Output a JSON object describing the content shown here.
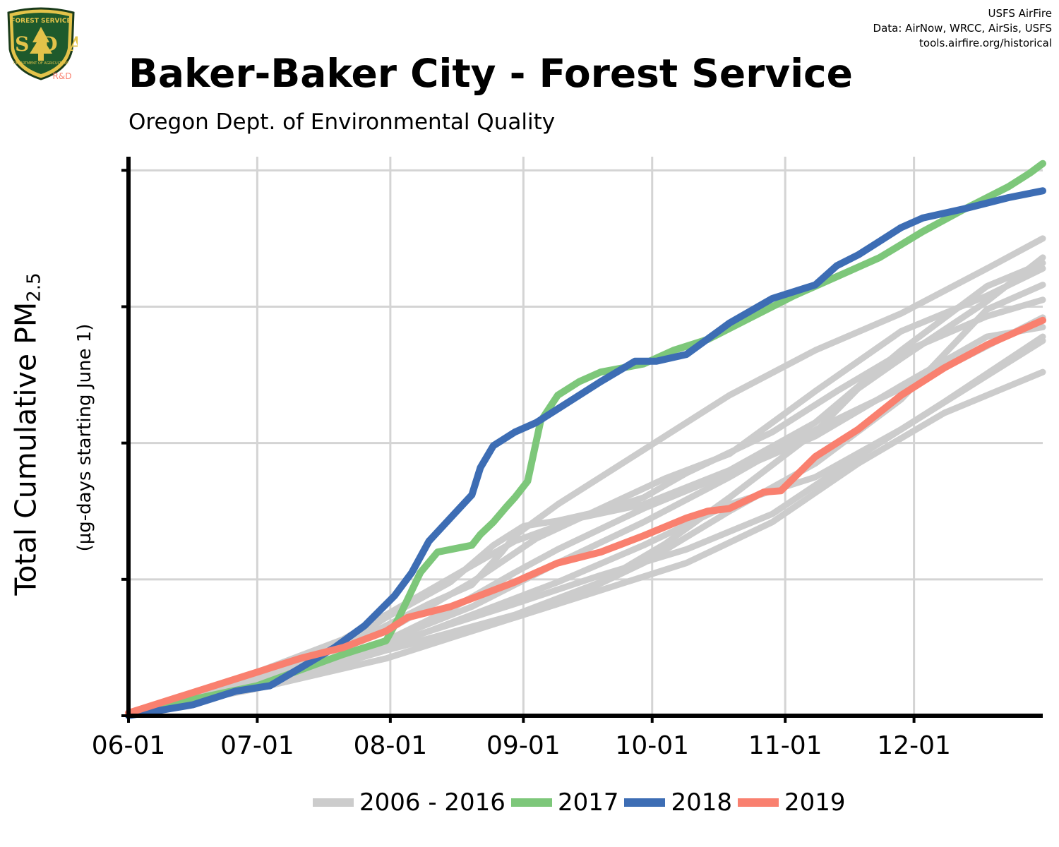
{
  "logo": {
    "top_text": "FOREST SERVICE",
    "letters": "USDA",
    "bottom_text": "DEPARTMENT OF AGRICULTURE",
    "badge": "R&D"
  },
  "credits": [
    "USFS AirFire",
    "Data: AirNow, WRCC, AirSis, USFS",
    "tools.airfire.org/historical"
  ],
  "colors": {
    "historical": "#cccccc",
    "y2017": "#7dc77a",
    "y2018": "#3d6db4",
    "y2019": "#f9806f",
    "grid": "#d4d4d4",
    "axis": "#000000"
  },
  "chart_data": {
    "type": "line",
    "title": "Baker-Baker City - Forest Service",
    "subtitle": "Oregon Dept. of Environmental Quality",
    "ylabel": "Total Cumulative PM",
    "ylabel_sub": "2.5",
    "ylabel_units": "(µg-days starting June 1)",
    "x_ticks": [
      "06-01",
      "07-01",
      "08-01",
      "09-01",
      "10-01",
      "11-01",
      "12-01"
    ],
    "x_tick_days": [
      0,
      30,
      61,
      92,
      122,
      153,
      183
    ],
    "xlim": [
      0,
      213
    ],
    "ylim": [
      0,
      4.1
    ],
    "y_grid": [
      0,
      1,
      2,
      3,
      4
    ],
    "grid": true,
    "legend_position": "bottom",
    "series": [
      {
        "name": "2006 - 2016",
        "color_key": "historical",
        "group": [
          {
            "x": [
              0,
              20,
              50,
              60,
              75,
              85,
              92,
              100,
              110,
              120,
              130,
              150,
              165,
              180,
              200,
              213
            ],
            "y": [
              0.02,
              0.2,
              0.52,
              0.72,
              0.98,
              1.25,
              1.39,
              1.43,
              1.5,
              1.6,
              1.78,
              2.08,
              2.38,
              2.66,
              2.93,
              3.05
            ]
          },
          {
            "x": [
              0,
              30,
              55,
              70,
              80,
              87,
              90,
              100,
              120,
              140,
              160,
              180,
              200,
              213
            ],
            "y": [
              0.02,
              0.28,
              0.58,
              0.82,
              0.96,
              1.2,
              1.32,
              1.55,
              1.95,
              2.35,
              2.68,
              2.95,
              3.28,
              3.5
            ]
          },
          {
            "x": [
              0,
              30,
              60,
              90,
              110,
              125,
              140,
              160,
              170,
              180,
              200,
              213
            ],
            "y": [
              0.02,
              0.22,
              0.48,
              0.74,
              0.98,
              1.26,
              1.6,
              2.08,
              2.4,
              2.62,
              3.04,
              3.36
            ]
          },
          {
            "x": [
              0,
              25,
              50,
              70,
              90,
              105,
              120,
              140,
              160,
              180,
              200,
              213
            ],
            "y": [
              0.02,
              0.26,
              0.56,
              0.92,
              1.28,
              1.45,
              1.55,
              1.8,
              2.15,
              2.68,
              3.15,
              3.32
            ]
          },
          {
            "x": [
              0,
              30,
              60,
              80,
              100,
              120,
              140,
              160,
              180,
              200,
              213
            ],
            "y": [
              0.02,
              0.2,
              0.42,
              0.62,
              0.82,
              1.12,
              1.5,
              1.85,
              2.32,
              2.98,
              3.16
            ]
          },
          {
            "x": [
              0,
              30,
              60,
              80,
              100,
              120,
              140,
              155,
              170,
              190,
              213
            ],
            "y": [
              0.02,
              0.25,
              0.55,
              0.8,
              1.12,
              1.42,
              1.75,
              2.02,
              2.25,
              2.55,
              2.92
            ]
          },
          {
            "x": [
              0,
              30,
              60,
              90,
              110,
              130,
              150,
              170,
              190,
              213
            ],
            "y": [
              0.02,
              0.2,
              0.48,
              0.72,
              0.92,
              1.12,
              1.42,
              1.85,
              2.22,
              2.52
            ]
          },
          {
            "x": [
              0,
              30,
              60,
              90,
              110,
              130,
              150,
              170,
              190,
              213
            ],
            "y": [
              0.02,
              0.22,
              0.52,
              0.82,
              1.03,
              1.22,
              1.48,
              1.9,
              2.3,
              2.78
            ]
          },
          {
            "x": [
              0,
              30,
              60,
              75,
              90,
              100,
              120,
              140,
              160,
              180,
              200,
              213
            ],
            "y": [
              0.02,
              0.24,
              0.55,
              0.78,
              1.05,
              1.22,
              1.52,
              1.78,
              2.05,
              2.42,
              2.78,
              2.85
            ]
          },
          {
            "x": [
              0,
              30,
              60,
              80,
              100,
              120,
              140,
              160,
              180,
              213
            ],
            "y": [
              0.02,
              0.24,
              0.5,
              0.74,
              0.98,
              1.25,
              1.55,
              1.75,
              2.1,
              2.75
            ]
          },
          {
            "x": [
              0,
              30,
              60,
              80,
              95,
              110,
              125,
              140,
              160,
              180,
              200,
              213
            ],
            "y": [
              0.02,
              0.3,
              0.62,
              0.98,
              1.3,
              1.52,
              1.74,
              1.92,
              2.38,
              2.82,
              3.08,
              3.28
            ]
          }
        ]
      },
      {
        "name": "2017",
        "color_key": "y2017",
        "x": [
          0,
          30,
          50,
          60,
          63,
          68,
          72,
          80,
          82,
          85,
          88,
          90,
          93,
          96,
          100,
          105,
          110,
          120,
          127,
          135,
          145,
          155,
          165,
          175,
          185,
          195,
          205,
          210,
          213
        ],
        "y": [
          0.02,
          0.22,
          0.45,
          0.55,
          0.72,
          1.05,
          1.2,
          1.25,
          1.33,
          1.42,
          1.53,
          1.6,
          1.72,
          2.16,
          2.35,
          2.45,
          2.52,
          2.58,
          2.68,
          2.76,
          2.92,
          3.08,
          3.22,
          3.36,
          3.55,
          3.72,
          3.88,
          3.98,
          4.05
        ]
      },
      {
        "name": "2018",
        "color_key": "y2018",
        "x": [
          0,
          15,
          25,
          33,
          40,
          48,
          55,
          62,
          66,
          70,
          75,
          80,
          82,
          85,
          90,
          95,
          100,
          110,
          118,
          123,
          130,
          140,
          150,
          160,
          165,
          170,
          175,
          180,
          185,
          195,
          205,
          213
        ],
        "y": [
          0.0,
          0.08,
          0.18,
          0.22,
          0.35,
          0.5,
          0.66,
          0.88,
          1.05,
          1.28,
          1.45,
          1.62,
          1.82,
          1.98,
          2.08,
          2.15,
          2.25,
          2.45,
          2.6,
          2.6,
          2.65,
          2.88,
          3.06,
          3.16,
          3.3,
          3.38,
          3.48,
          3.58,
          3.65,
          3.72,
          3.8,
          3.85
        ]
      },
      {
        "name": "2019",
        "color_key": "y2019",
        "x": [
          0,
          20,
          40,
          50,
          60,
          65,
          75,
          90,
          100,
          110,
          120,
          130,
          135,
          140,
          148,
          152,
          160,
          170,
          180,
          190,
          200,
          213
        ],
        "y": [
          0.02,
          0.22,
          0.42,
          0.5,
          0.62,
          0.72,
          0.8,
          0.98,
          1.12,
          1.2,
          1.32,
          1.45,
          1.5,
          1.52,
          1.64,
          1.65,
          1.9,
          2.1,
          2.35,
          2.55,
          2.72,
          2.9
        ]
      }
    ]
  },
  "legend": [
    {
      "label": "2006 - 2016",
      "color_key": "historical"
    },
    {
      "label": "2017",
      "color_key": "y2017"
    },
    {
      "label": "2018",
      "color_key": "y2018"
    },
    {
      "label": "2019",
      "color_key": "y2019"
    }
  ]
}
